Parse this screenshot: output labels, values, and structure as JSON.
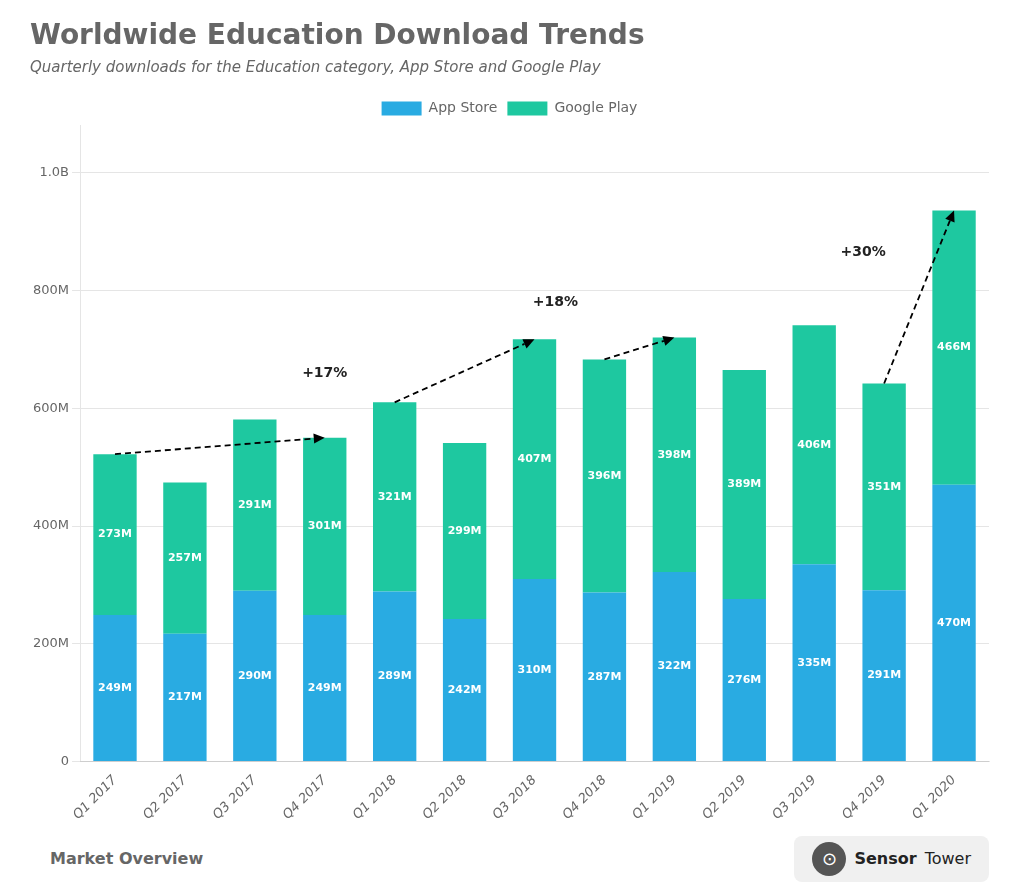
{
  "chart_data": {
    "type": "bar",
    "title": "Worldwide Education Download Trends",
    "subtitle": "Quarterly downloads for the Education category, App Store and Google Play",
    "categories": [
      "Q1 2017",
      "Q2 2017",
      "Q3 2017",
      "Q4 2017",
      "Q1 2018",
      "Q2 2018",
      "Q3 2018",
      "Q4 2018",
      "Q1 2019",
      "Q2 2019",
      "Q3 2019",
      "Q4 2019",
      "Q1 2020"
    ],
    "series": [
      {
        "name": "App Store",
        "color": "#29ABE2",
        "values": [
          249,
          217,
          290,
          249,
          289,
          242,
          310,
          287,
          322,
          276,
          335,
          291,
          470
        ],
        "value_labels": [
          "249M",
          "217M",
          "290M",
          "249M",
          "289M",
          "242M",
          "310M",
          "287M",
          "322M",
          "276M",
          "335M",
          "291M",
          "470M"
        ]
      },
      {
        "name": "Google Play",
        "color": "#1EC8A0",
        "values": [
          273,
          257,
          291,
          301,
          321,
          299,
          407,
          396,
          398,
          389,
          406,
          351,
          466
        ],
        "value_labels": [
          "273M",
          "257M",
          "291M",
          "301M",
          "321M",
          "299M",
          "407M",
          "396M",
          "398M",
          "389M",
          "406M",
          "351M",
          "466M"
        ]
      }
    ],
    "stacked": true,
    "data_labels": true,
    "ylim": [
      0,
      1080
    ],
    "yticks": [
      0,
      {
        "value": 200,
        "label": "200M"
      },
      {
        "value": 400,
        "label": "400M"
      },
      {
        "value": 600,
        "label": "600M"
      },
      {
        "value": 800,
        "label": "800M"
      },
      {
        "value": 1000,
        "label": "1.0B"
      }
    ],
    "grid": true,
    "legend": "top",
    "arrows": [
      {
        "from": "Q1 2017",
        "to": "Q4 2017"
      },
      {
        "from": "Q1 2018",
        "to": "Q3 2018"
      },
      {
        "from": "Q4 2018",
        "to": "Q1 2019"
      },
      {
        "from": "Q4 2019",
        "to": "Q1 2020"
      }
    ],
    "annotations": [
      {
        "text": "+17%",
        "x": 3.0,
        "y": 660
      },
      {
        "text": "+18%",
        "x": 6.3,
        "y": 780
      },
      {
        "text": "+30%",
        "x": 10.7,
        "y": 865
      }
    ],
    "footer": {
      "left": "Market Overview",
      "right": [
        "⊙",
        "Sensor",
        "Tower"
      ]
    }
  }
}
